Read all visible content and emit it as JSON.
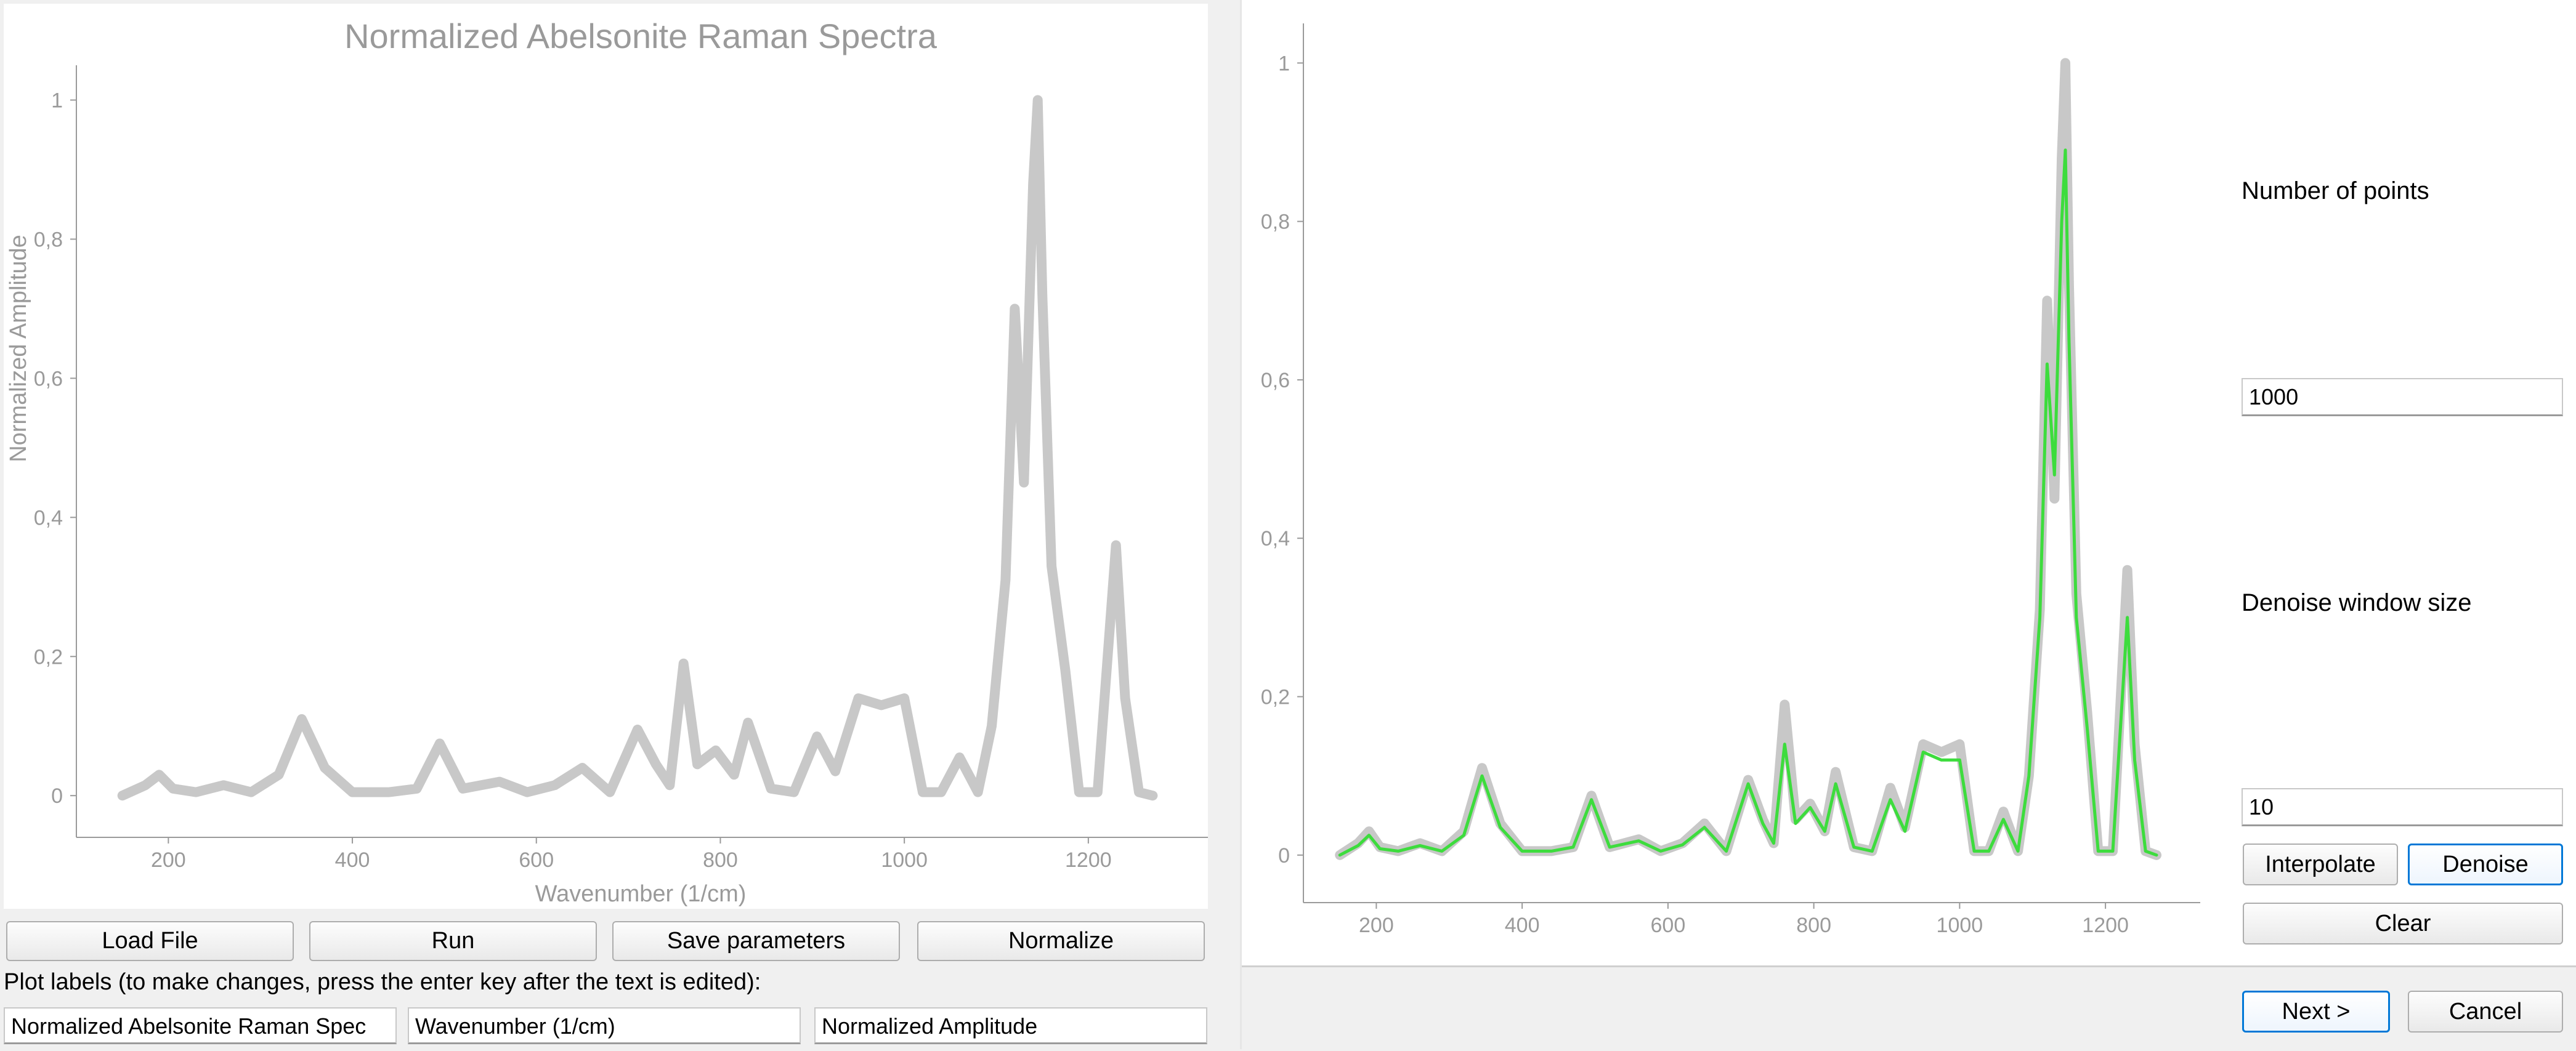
{
  "left_panel": {
    "buttons": {
      "load_file": "Load File",
      "run": "Run",
      "save_parameters": "Save parameters",
      "normalize": "Normalize"
    },
    "plot_labels_hint": "Plot labels (to make changes, press the enter key after the text is edited):",
    "fields": {
      "title_value": "Normalized Abelsonite Raman Spec",
      "xlabel_value": "Wavenumber (1/cm)",
      "ylabel_value": "Normalized Amplitude"
    }
  },
  "right_panel": {
    "number_of_points_label": "Number of points",
    "number_of_points_value": "1000",
    "denoise_window_label": "Denoise window size",
    "denoise_window_value": "10",
    "buttons": {
      "interpolate": "Interpolate",
      "denoise": "Denoise",
      "clear": "Clear",
      "next": "Next >",
      "cancel": "Cancel"
    }
  },
  "chart_data": [
    {
      "type": "line",
      "title": "Normalized Abelsonite Raman Spectra",
      "xlabel": "Wavenumber (1/cm)",
      "ylabel": "Normalized Amplitude",
      "xlim": [
        100,
        1330
      ],
      "ylim": [
        -0.06,
        1.05
      ],
      "xticks": [
        200,
        400,
        600,
        800,
        1000,
        1200
      ],
      "yticks": [
        0,
        0.2,
        0.4,
        0.6,
        0.8,
        1
      ],
      "ytick_labels": [
        "0",
        "0,2",
        "0,4",
        "0,6",
        "0,8",
        "1"
      ],
      "grid": false,
      "series": [
        {
          "color": "#c8c8c8",
          "x": [
            150,
            175,
            190,
            205,
            230,
            260,
            290,
            320,
            345,
            370,
            400,
            440,
            470,
            495,
            520,
            560,
            590,
            620,
            650,
            680,
            710,
            730,
            745,
            760,
            775,
            795,
            815,
            830,
            855,
            880,
            905,
            925,
            950,
            975,
            1000,
            1020,
            1040,
            1060,
            1080,
            1095,
            1110,
            1120,
            1130,
            1140,
            1145,
            1150,
            1160,
            1175,
            1190,
            1210,
            1230,
            1240,
            1255,
            1270
          ],
          "y": [
            0.0,
            0.015,
            0.03,
            0.01,
            0.005,
            0.015,
            0.005,
            0.03,
            0.11,
            0.04,
            0.005,
            0.005,
            0.01,
            0.075,
            0.01,
            0.02,
            0.005,
            0.015,
            0.04,
            0.005,
            0.095,
            0.045,
            0.015,
            0.19,
            0.045,
            0.065,
            0.03,
            0.105,
            0.01,
            0.005,
            0.085,
            0.035,
            0.14,
            0.13,
            0.14,
            0.005,
            0.005,
            0.055,
            0.005,
            0.1,
            0.31,
            0.7,
            0.45,
            0.88,
            1.0,
            0.72,
            0.33,
            0.18,
            0.005,
            0.005,
            0.36,
            0.14,
            0.005,
            0.0
          ]
        }
      ]
    },
    {
      "type": "line",
      "title": "",
      "xlabel": "",
      "ylabel": "",
      "xlim": [
        100,
        1330
      ],
      "ylim": [
        -0.06,
        1.05
      ],
      "xticks": [
        200,
        400,
        600,
        800,
        1000,
        1200
      ],
      "yticks": [
        0,
        0.2,
        0.4,
        0.6,
        0.8,
        1
      ],
      "ytick_labels": [
        "0",
        "0,2",
        "0,4",
        "0,6",
        "0,8",
        "1"
      ],
      "grid": false,
      "series": [
        {
          "color": "#c8c8c8",
          "x": [
            150,
            175,
            190,
            205,
            230,
            260,
            290,
            320,
            345,
            370,
            400,
            440,
            470,
            495,
            520,
            560,
            590,
            620,
            650,
            680,
            710,
            730,
            745,
            760,
            775,
            795,
            815,
            830,
            855,
            880,
            905,
            925,
            950,
            975,
            1000,
            1020,
            1040,
            1060,
            1080,
            1095,
            1110,
            1120,
            1130,
            1140,
            1145,
            1150,
            1160,
            1175,
            1190,
            1210,
            1230,
            1240,
            1255,
            1270
          ],
          "y": [
            0.0,
            0.015,
            0.03,
            0.01,
            0.005,
            0.015,
            0.005,
            0.03,
            0.11,
            0.04,
            0.005,
            0.005,
            0.01,
            0.075,
            0.01,
            0.02,
            0.005,
            0.015,
            0.04,
            0.005,
            0.095,
            0.045,
            0.015,
            0.19,
            0.045,
            0.065,
            0.03,
            0.105,
            0.01,
            0.005,
            0.085,
            0.035,
            0.14,
            0.13,
            0.14,
            0.005,
            0.005,
            0.055,
            0.005,
            0.1,
            0.31,
            0.7,
            0.45,
            0.88,
            1.0,
            0.72,
            0.33,
            0.18,
            0.005,
            0.005,
            0.36,
            0.14,
            0.005,
            0.0
          ]
        },
        {
          "color": "#3ddc3d",
          "x": [
            150,
            175,
            190,
            205,
            230,
            260,
            290,
            320,
            345,
            370,
            400,
            440,
            470,
            495,
            520,
            560,
            590,
            620,
            650,
            680,
            710,
            730,
            745,
            760,
            775,
            795,
            815,
            830,
            855,
            880,
            905,
            925,
            950,
            975,
            1000,
            1020,
            1040,
            1060,
            1080,
            1095,
            1110,
            1120,
            1130,
            1140,
            1145,
            1150,
            1160,
            1175,
            1190,
            1210,
            1230,
            1240,
            1255,
            1270
          ],
          "y": [
            0.0,
            0.012,
            0.025,
            0.008,
            0.005,
            0.012,
            0.005,
            0.025,
            0.1,
            0.035,
            0.005,
            0.005,
            0.01,
            0.07,
            0.01,
            0.018,
            0.005,
            0.013,
            0.035,
            0.005,
            0.09,
            0.04,
            0.015,
            0.14,
            0.04,
            0.06,
            0.03,
            0.09,
            0.01,
            0.005,
            0.07,
            0.03,
            0.13,
            0.12,
            0.12,
            0.005,
            0.005,
            0.045,
            0.005,
            0.1,
            0.3,
            0.62,
            0.48,
            0.8,
            0.89,
            0.65,
            0.3,
            0.16,
            0.005,
            0.005,
            0.3,
            0.12,
            0.005,
            0.0
          ]
        }
      ]
    }
  ]
}
